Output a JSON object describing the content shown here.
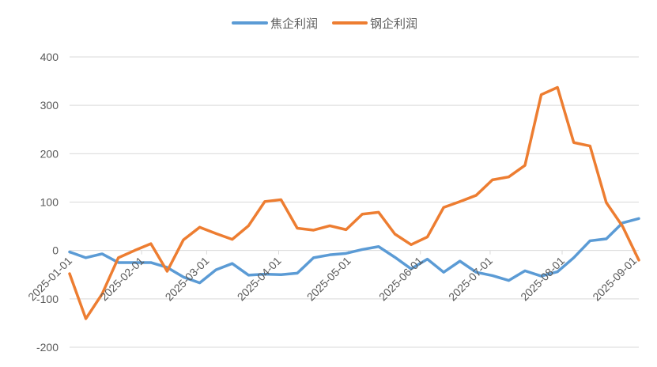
{
  "chart_data": {
    "type": "line",
    "title": "",
    "xlabel": "",
    "ylabel": "",
    "ylim": [
      -200,
      400
    ],
    "yticks": [
      -200,
      -100,
      0,
      100,
      200,
      300,
      400
    ],
    "x_tick_labels": [
      "2025-01-01",
      "2025-02-01",
      "2025-03-01",
      "2025-04-01",
      "2025-05-01",
      "2025-06-01",
      "2025-07-01",
      "2025-08-01",
      "2025-09-01"
    ],
    "grid": true,
    "legend_position": "top",
    "x": [
      "2025-01-01",
      "2025-01-08",
      "2025-01-15",
      "2025-01-22",
      "2025-01-29",
      "2025-02-05",
      "2025-02-12",
      "2025-02-19",
      "2025-02-26",
      "2025-03-05",
      "2025-03-12",
      "2025-03-19",
      "2025-03-26",
      "2025-04-02",
      "2025-04-09",
      "2025-04-16",
      "2025-04-23",
      "2025-04-30",
      "2025-05-07",
      "2025-05-14",
      "2025-05-21",
      "2025-05-28",
      "2025-06-04",
      "2025-06-11",
      "2025-06-18",
      "2025-06-25",
      "2025-07-02",
      "2025-07-09",
      "2025-07-16",
      "2025-07-23",
      "2025-07-30",
      "2025-08-06",
      "2025-08-13",
      "2025-08-20",
      "2025-08-27",
      "2025-09-03"
    ],
    "series": [
      {
        "name": "焦企利润",
        "color": "#5b9bd5",
        "values": [
          -3,
          -15,
          -7,
          -25,
          -25,
          -25,
          -35,
          -55,
          -67,
          -40,
          -27,
          -51,
          -49,
          -50,
          -47,
          -15,
          -9,
          -6,
          2,
          8,
          -14,
          -38,
          -18,
          -45,
          -22,
          -45,
          -52,
          -62,
          -42,
          -53,
          -44,
          -15,
          20,
          24,
          57,
          66
        ]
      },
      {
        "name": "钢企利润",
        "color": "#ed7d31",
        "values": [
          -48,
          -141,
          -90,
          -15,
          0,
          14,
          -43,
          22,
          48,
          35,
          23,
          51,
          101,
          105,
          46,
          42,
          51,
          43,
          75,
          79,
          34,
          12,
          28,
          89,
          101,
          114,
          146,
          152,
          176,
          322,
          337,
          223,
          216,
          99,
          50,
          -20
        ]
      }
    ]
  }
}
